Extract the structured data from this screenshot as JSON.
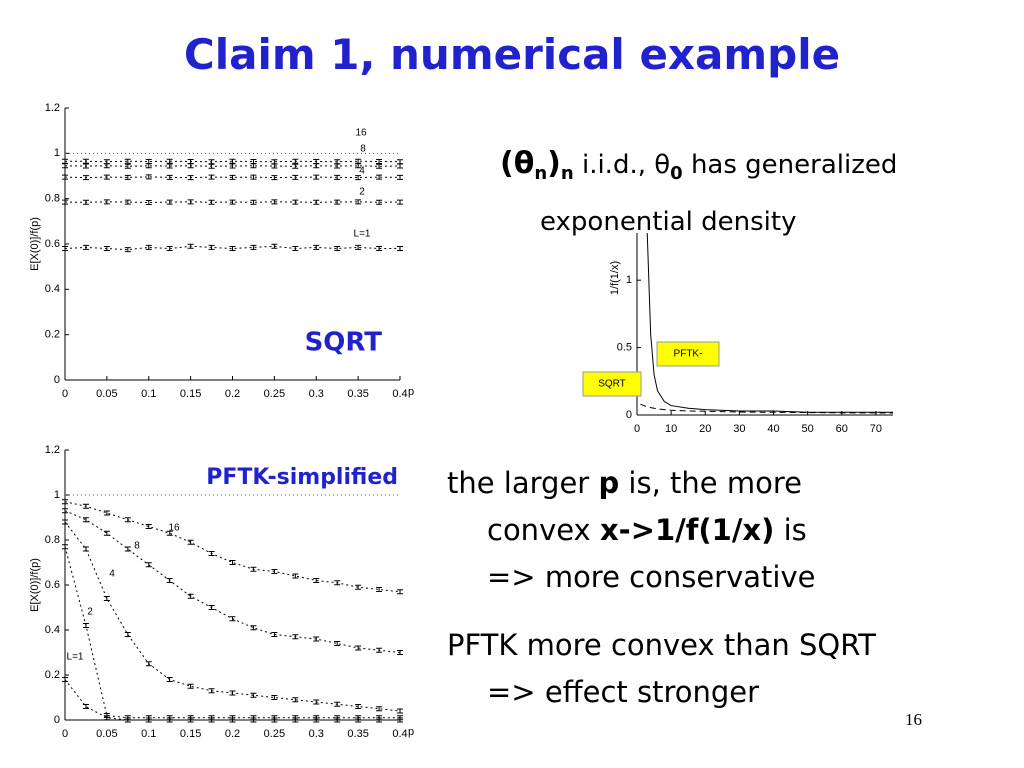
{
  "title": "Claim 1, numerical example",
  "density_note": [
    "(θ",
    "n",
    ")",
    "n",
    " i.i.d., θ",
    "0",
    " has generalized",
    "exponential density"
  ],
  "bullets": [
    [
      "the larger ",
      "p",
      " is, the more",
      "convex ",
      "x->1/f(1/x)",
      " is",
      "=> more conservative"
    ],
    [
      "PFTK more convex than SQRT",
      "=> effect stronger"
    ]
  ],
  "page_number": "16",
  "chart_data": [
    {
      "type": "line",
      "title": "SQRT",
      "x_label": "p",
      "y_label": "E[X(0)]/f(p)",
      "x": [
        0,
        0.025,
        0.05,
        0.075,
        0.1,
        0.125,
        0.15,
        0.175,
        0.2,
        0.225,
        0.25,
        0.275,
        0.3,
        0.325,
        0.35,
        0.375,
        0.4
      ],
      "xlim": [
        0,
        0.4
      ],
      "ylim": [
        0,
        1.2
      ],
      "xticks": [
        0,
        0.05,
        0.1,
        0.15,
        0.2,
        0.25,
        0.3,
        0.35,
        0.4
      ],
      "yticks": [
        0,
        0.2,
        0.4,
        0.6,
        0.8,
        1,
        1.2
      ],
      "reference_line": 1,
      "line_style": "dotted",
      "series": [
        {
          "name": "16",
          "color": "#000000",
          "values": [
            0.965,
            0.965,
            0.963,
            0.965,
            0.964,
            0.965,
            0.964,
            0.963,
            0.965,
            0.964,
            0.963,
            0.965,
            0.964,
            0.963,
            0.965,
            0.964,
            0.963
          ]
        },
        {
          "name": "8",
          "color": "#000000",
          "values": [
            0.945,
            0.944,
            0.945,
            0.943,
            0.945,
            0.944,
            0.945,
            0.943,
            0.944,
            0.945,
            0.944,
            0.943,
            0.945,
            0.944,
            0.945,
            0.943,
            0.944
          ]
        },
        {
          "name": "4",
          "color": "#000000",
          "values": [
            0.895,
            0.893,
            0.895,
            0.894,
            0.896,
            0.894,
            0.893,
            0.895,
            0.894,
            0.895,
            0.893,
            0.894,
            0.895,
            0.894,
            0.893,
            0.895,
            0.894
          ]
        },
        {
          "name": "2",
          "color": "#000000",
          "values": [
            0.785,
            0.784,
            0.786,
            0.785,
            0.783,
            0.785,
            0.786,
            0.784,
            0.785,
            0.784,
            0.786,
            0.785,
            0.784,
            0.785,
            0.786,
            0.784,
            0.785
          ]
        },
        {
          "name": "L=1",
          "color": "#000000",
          "values": [
            0.58,
            0.585,
            0.58,
            0.575,
            0.585,
            0.58,
            0.59,
            0.585,
            0.58,
            0.585,
            0.59,
            0.58,
            0.585,
            0.58,
            0.585,
            0.58,
            0.58
          ]
        }
      ]
    },
    {
      "type": "line",
      "title": "PFTK-simplified",
      "x_label": "p",
      "y_label": "E[X(0)]/f(p)",
      "x": [
        0,
        0.025,
        0.05,
        0.075,
        0.1,
        0.125,
        0.15,
        0.175,
        0.2,
        0.225,
        0.25,
        0.275,
        0.3,
        0.325,
        0.35,
        0.375,
        0.4
      ],
      "xlim": [
        0,
        0.4
      ],
      "ylim": [
        0,
        1.2
      ],
      "xticks": [
        0,
        0.05,
        0.1,
        0.15,
        0.2,
        0.25,
        0.3,
        0.35,
        0.4
      ],
      "yticks": [
        0,
        0.2,
        0.4,
        0.6,
        0.8,
        1,
        1.2
      ],
      "reference_line": 1,
      "line_style": "dotted",
      "series": [
        {
          "name": "16",
          "color": "#000000",
          "values": [
            0.97,
            0.95,
            0.92,
            0.89,
            0.86,
            0.83,
            0.79,
            0.74,
            0.7,
            0.67,
            0.66,
            0.64,
            0.62,
            0.61,
            0.59,
            0.58,
            0.57
          ]
        },
        {
          "name": "8",
          "color": "#000000",
          "values": [
            0.93,
            0.89,
            0.83,
            0.76,
            0.69,
            0.62,
            0.55,
            0.5,
            0.45,
            0.41,
            0.38,
            0.37,
            0.36,
            0.34,
            0.32,
            0.31,
            0.3
          ]
        },
        {
          "name": "4",
          "color": "#000000",
          "values": [
            0.88,
            0.76,
            0.54,
            0.38,
            0.25,
            0.18,
            0.15,
            0.13,
            0.12,
            0.11,
            0.1,
            0.09,
            0.08,
            0.07,
            0.06,
            0.05,
            0.04
          ]
        },
        {
          "name": "2",
          "color": "#000000",
          "values": [
            0.77,
            0.42,
            0.02,
            0.01,
            0.01,
            0.01,
            0.01,
            0.01,
            0.01,
            0.01,
            0.01,
            0.01,
            0.01,
            0.01,
            0.01,
            0.01,
            0.01
          ]
        },
        {
          "name": "L=1",
          "color": "#000000",
          "values": [
            0.18,
            0.06,
            0.01,
            0,
            0,
            0,
            0,
            0,
            0,
            0,
            0,
            0,
            0,
            0,
            0,
            0,
            0
          ]
        }
      ]
    },
    {
      "type": "line",
      "y_label": "1/f(1/x)",
      "x": [
        1,
        2,
        3,
        4,
        5,
        6,
        8,
        10,
        15,
        20,
        30,
        40,
        50,
        60,
        75
      ],
      "xlim": [
        0,
        75
      ],
      "ylim": [
        0,
        1.35
      ],
      "xticks": [
        0,
        10,
        20,
        30,
        40,
        50,
        60,
        70
      ],
      "yticks": [
        0,
        0.5,
        1
      ],
      "label_background": "#ffff00",
      "series": [
        {
          "name": "PFTK-",
          "color": "#000000",
          "dash": "solid",
          "values": [
            null,
            null,
            1.35,
            0.6,
            0.3,
            0.18,
            0.1,
            0.07,
            0.05,
            0.04,
            0.03,
            0.03,
            0.02,
            0.02,
            0.02
          ]
        },
        {
          "name": "SQRT",
          "color": "#000000",
          "dash": "dashed",
          "values": [
            0.08,
            0.07,
            0.06,
            0.055,
            0.05,
            0.045,
            0.04,
            0.035,
            0.03,
            0.028,
            0.022,
            0.02,
            0.018,
            0.016,
            0.015
          ]
        }
      ]
    }
  ]
}
